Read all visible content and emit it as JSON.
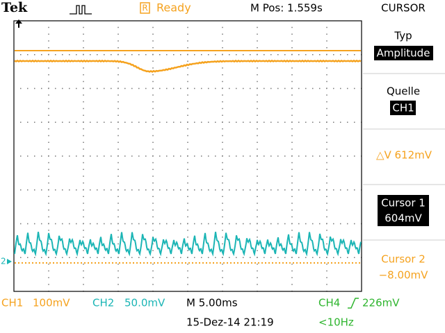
{
  "header": {
    "brand": "Tek",
    "status_icon": "R",
    "status": "Ready",
    "position": "M Pos: 1.559s",
    "mode": "CURSOR"
  },
  "panel": {
    "type_label": "Typ",
    "type_value": "Amplitude",
    "source_label": "Quelle",
    "source_value": "CH1",
    "delta": "△V 612mV",
    "cursor1_label": "Cursor 1",
    "cursor1_value": "604mV",
    "cursor2_label": "Cursor 2",
    "cursor2_value": "−8.00mV"
  },
  "markers": {
    "ch2": "2"
  },
  "footer": {
    "ch1_name": "CH1",
    "ch1_scale": "100mV",
    "ch2_name": "CH2",
    "ch2_scale": "50.0mV",
    "timebase": "M 5.00ms",
    "ch4_name": "CH4",
    "trigger_level": "226mV",
    "datetime": "15-Dez-14 21:19",
    "frequency": "<10Hz"
  }
}
